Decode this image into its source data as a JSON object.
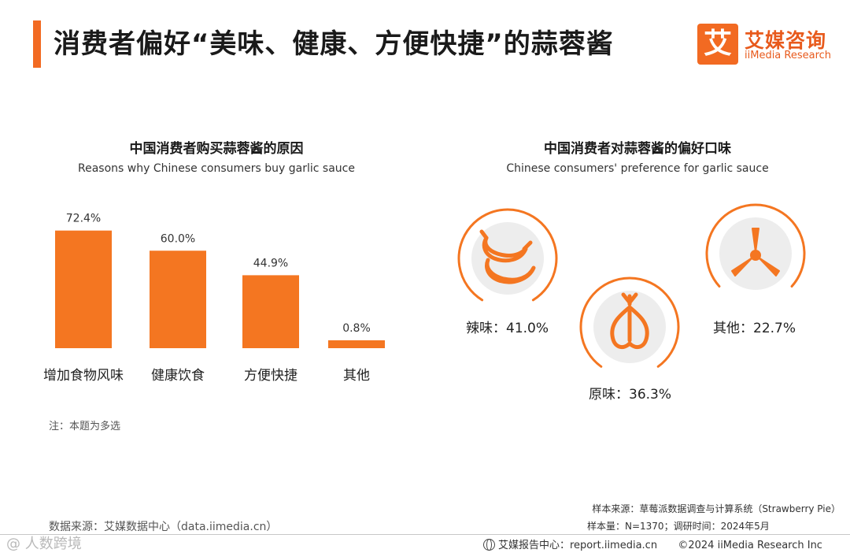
{
  "header": {
    "title": "消费者偏好“美味、健康、方便快捷”的蒜蓉酱",
    "accent_color": "#f26a22",
    "logo": {
      "mark": "艾",
      "cn": "艾媒咨询",
      "en": "iiMedia Research"
    }
  },
  "chart_data": [
    {
      "type": "bar",
      "title": "中国消费者购买蒜蓉酱的原因",
      "subtitle": "Reasons why Chinese consumers buy garlic sauce",
      "categories": [
        "增加食物风味",
        "健康饮食",
        "方便快捷",
        "其他"
      ],
      "values": [
        72.4,
        60.0,
        44.9,
        0.8
      ],
      "value_labels": [
        "72.4%",
        "60.0%",
        "44.9%",
        "0.8%"
      ],
      "unit": "%",
      "ylim": [
        0,
        80
      ],
      "grid": false,
      "color": "#f47621"
    },
    {
      "type": "pie",
      "title": "中国消费者对蒜蓉酱的偏好口味",
      "subtitle": "Chinese consumers' preference for garlic sauce",
      "categories": [
        "辣味",
        "原味",
        "其他"
      ],
      "values": [
        41.0,
        36.3,
        22.7
      ],
      "value_labels": [
        "辣味：41.0%",
        "原味：36.3%",
        "其他：22.7%"
      ],
      "icons": [
        "chili-pepper-icon",
        "garlic-icon",
        "propeller-icon"
      ],
      "color": "#f47621"
    }
  ],
  "note": "注：本题为多选",
  "footer": {
    "data_source": "数据来源：艾媒数据中心（data.iimedia.cn）",
    "sample_source": "样本来源：草莓派数据调查与计算系统（Strawberry Pie）",
    "sample_size": "样本量：N=1370；调研时间：2024年5月",
    "report_center": "艾媒报告中心：report.iimedia.cn",
    "copyright": "©2024  iiMedia Research  Inc",
    "watermark": "@  人数跨境"
  }
}
